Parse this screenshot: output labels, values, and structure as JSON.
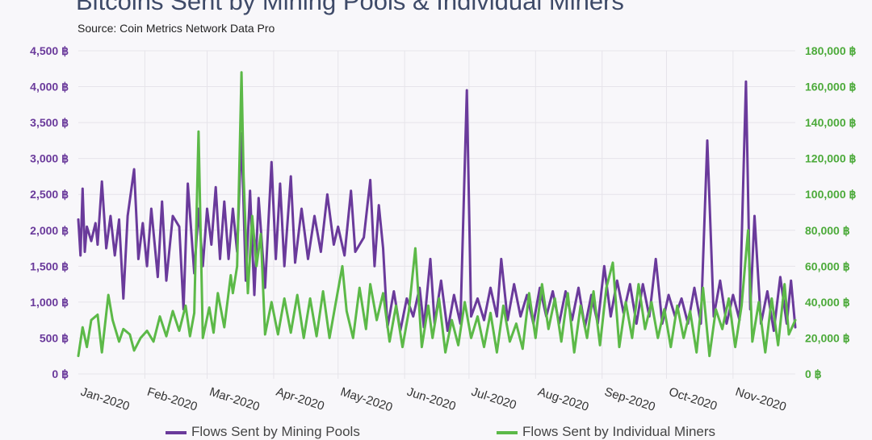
{
  "header": {
    "title": "Bitcoins Sent by Mining Pools & Individual Miners",
    "subtitle": "Source: Coin Metrics Network Data Pro"
  },
  "colors": {
    "pools": "#6a3a9b",
    "miners": "#5cb948",
    "grid": "#e6e4ea",
    "axis_left": "#6a3a9b",
    "axis_right": "#4caa3a"
  },
  "legend": {
    "pools": "Flows Sent by Mining Pools",
    "miners": "Flows Sent by Individual Miners"
  },
  "chart_data": {
    "type": "line",
    "title": "Bitcoins Sent by Mining Pools & Individual Miners",
    "x_type": "date",
    "x_range": [
      "2020-01-01",
      "2020-11-30"
    ],
    "x_ticks": [
      "Jan-2020",
      "Feb-2020",
      "Mar-2020",
      "Apr-2020",
      "May-2020",
      "Jun-2020",
      "Jul-2020",
      "Aug-2020",
      "Sep-2020",
      "Oct-2020",
      "Nov-2020"
    ],
    "y_left": {
      "range": [
        0,
        4500
      ],
      "ticks": [
        "0 ฿",
        "500 ฿",
        "1,000 ฿",
        "1,500 ฿",
        "2,000 ฿",
        "2,500 ฿",
        "3,000 ฿",
        "3,500 ฿",
        "4,000 ฿",
        "4,500 ฿"
      ]
    },
    "y_right": {
      "range": [
        0,
        180000
      ],
      "ticks": [
        "0 ฿",
        "20,000 ฿",
        "40,000 ฿",
        "60,000 ฿",
        "80,000 ฿",
        "100,000 ฿",
        "120,000 ฿",
        "140,000 ฿",
        "160,000 ฿",
        "180,000 ฿"
      ]
    },
    "grid": true,
    "legend_position": "bottom",
    "series": [
      {
        "name": "Flows Sent by Mining Pools",
        "axis": "left",
        "points": [
          [
            "2020-01-01",
            2150
          ],
          [
            "2020-01-02",
            1650
          ],
          [
            "2020-01-03",
            2580
          ],
          [
            "2020-01-04",
            1700
          ],
          [
            "2020-01-05",
            2050
          ],
          [
            "2020-01-07",
            1850
          ],
          [
            "2020-01-09",
            2100
          ],
          [
            "2020-01-10",
            1800
          ],
          [
            "2020-01-12",
            2680
          ],
          [
            "2020-01-14",
            1750
          ],
          [
            "2020-01-16",
            2200
          ],
          [
            "2020-01-18",
            1650
          ],
          [
            "2020-01-20",
            2150
          ],
          [
            "2020-01-22",
            1050
          ],
          [
            "2020-01-24",
            2200
          ],
          [
            "2020-01-27",
            2850
          ],
          [
            "2020-01-29",
            1600
          ],
          [
            "2020-01-31",
            2100
          ],
          [
            "2020-02-02",
            1500
          ],
          [
            "2020-02-04",
            2300
          ],
          [
            "2020-02-07",
            1350
          ],
          [
            "2020-02-09",
            2400
          ],
          [
            "2020-02-11",
            1300
          ],
          [
            "2020-02-14",
            2200
          ],
          [
            "2020-02-17",
            2050
          ],
          [
            "2020-02-19",
            900
          ],
          [
            "2020-02-21",
            2650
          ],
          [
            "2020-02-24",
            1400
          ],
          [
            "2020-02-26",
            2300
          ],
          [
            "2020-02-28",
            1500
          ],
          [
            "2020-03-01",
            2300
          ],
          [
            "2020-03-03",
            1800
          ],
          [
            "2020-03-05",
            2600
          ],
          [
            "2020-03-07",
            1600
          ],
          [
            "2020-03-09",
            2400
          ],
          [
            "2020-03-11",
            1600
          ],
          [
            "2020-03-13",
            2300
          ],
          [
            "2020-03-15",
            1700
          ],
          [
            "2020-03-17",
            3350
          ],
          [
            "2020-03-19",
            1300
          ],
          [
            "2020-03-21",
            2550
          ],
          [
            "2020-03-23",
            1100
          ],
          [
            "2020-03-25",
            2450
          ],
          [
            "2020-03-28",
            1200
          ],
          [
            "2020-03-31",
            2950
          ],
          [
            "2020-04-02",
            1600
          ],
          [
            "2020-04-04",
            2650
          ],
          [
            "2020-04-06",
            1500
          ],
          [
            "2020-04-09",
            2750
          ],
          [
            "2020-04-11",
            1550
          ],
          [
            "2020-04-14",
            2300
          ],
          [
            "2020-04-17",
            1600
          ],
          [
            "2020-04-20",
            2200
          ],
          [
            "2020-04-23",
            1700
          ],
          [
            "2020-04-26",
            2500
          ],
          [
            "2020-04-29",
            1800
          ],
          [
            "2020-05-01",
            2050
          ],
          [
            "2020-05-04",
            1650
          ],
          [
            "2020-05-07",
            2550
          ],
          [
            "2020-05-09",
            1700
          ],
          [
            "2020-05-11",
            1800
          ],
          [
            "2020-05-13",
            1900
          ],
          [
            "2020-05-16",
            2700
          ],
          [
            "2020-05-18",
            1500
          ],
          [
            "2020-05-20",
            2350
          ],
          [
            "2020-05-22",
            1750
          ],
          [
            "2020-05-24",
            650
          ],
          [
            "2020-05-27",
            1150
          ],
          [
            "2020-05-30",
            600
          ],
          [
            "2020-06-02",
            1050
          ],
          [
            "2020-06-05",
            800
          ],
          [
            "2020-06-08",
            1200
          ],
          [
            "2020-06-10",
            650
          ],
          [
            "2020-06-13",
            1600
          ],
          [
            "2020-06-15",
            700
          ],
          [
            "2020-06-18",
            1300
          ],
          [
            "2020-06-21",
            600
          ],
          [
            "2020-06-24",
            1100
          ],
          [
            "2020-06-27",
            700
          ],
          [
            "2020-06-30",
            3950
          ],
          [
            "2020-07-02",
            800
          ],
          [
            "2020-07-05",
            1050
          ],
          [
            "2020-07-08",
            750
          ],
          [
            "2020-07-11",
            1200
          ],
          [
            "2020-07-14",
            800
          ],
          [
            "2020-07-16",
            1600
          ],
          [
            "2020-07-19",
            750
          ],
          [
            "2020-07-22",
            1250
          ],
          [
            "2020-07-25",
            800
          ],
          [
            "2020-07-28",
            1100
          ],
          [
            "2020-07-31",
            700
          ],
          [
            "2020-08-03",
            1200
          ],
          [
            "2020-08-06",
            800
          ],
          [
            "2020-08-09",
            1150
          ],
          [
            "2020-08-12",
            700
          ],
          [
            "2020-08-15",
            1150
          ],
          [
            "2020-08-18",
            750
          ],
          [
            "2020-08-21",
            1200
          ],
          [
            "2020-08-24",
            650
          ],
          [
            "2020-08-27",
            1100
          ],
          [
            "2020-08-30",
            700
          ],
          [
            "2020-09-02",
            1500
          ],
          [
            "2020-09-05",
            800
          ],
          [
            "2020-09-08",
            1300
          ],
          [
            "2020-09-11",
            850
          ],
          [
            "2020-09-14",
            1250
          ],
          [
            "2020-09-17",
            700
          ],
          [
            "2020-09-20",
            1250
          ],
          [
            "2020-09-23",
            800
          ],
          [
            "2020-09-26",
            1600
          ],
          [
            "2020-09-29",
            700
          ],
          [
            "2020-10-02",
            1100
          ],
          [
            "2020-10-05",
            800
          ],
          [
            "2020-10-08",
            1050
          ],
          [
            "2020-10-11",
            700
          ],
          [
            "2020-10-14",
            1200
          ],
          [
            "2020-10-17",
            700
          ],
          [
            "2020-10-20",
            3250
          ],
          [
            "2020-10-23",
            800
          ],
          [
            "2020-10-26",
            1300
          ],
          [
            "2020-10-29",
            700
          ],
          [
            "2020-11-01",
            1100
          ],
          [
            "2020-11-04",
            750
          ],
          [
            "2020-11-07",
            4070
          ],
          [
            "2020-11-09",
            900
          ],
          [
            "2020-11-11",
            2200
          ],
          [
            "2020-11-14",
            700
          ],
          [
            "2020-11-17",
            1150
          ],
          [
            "2020-11-20",
            600
          ],
          [
            "2020-11-23",
            1350
          ],
          [
            "2020-11-26",
            700
          ],
          [
            "2020-11-28",
            1300
          ],
          [
            "2020-11-30",
            650
          ]
        ]
      },
      {
        "name": "Flows Sent by Individual Miners",
        "axis": "right",
        "points": [
          [
            "2020-01-01",
            10000
          ],
          [
            "2020-01-03",
            26000
          ],
          [
            "2020-01-05",
            15000
          ],
          [
            "2020-01-07",
            30000
          ],
          [
            "2020-01-10",
            33000
          ],
          [
            "2020-01-12",
            12000
          ],
          [
            "2020-01-15",
            44000
          ],
          [
            "2020-01-17",
            30000
          ],
          [
            "2020-01-20",
            18000
          ],
          [
            "2020-01-22",
            25000
          ],
          [
            "2020-01-25",
            22000
          ],
          [
            "2020-01-27",
            13000
          ],
          [
            "2020-01-30",
            20000
          ],
          [
            "2020-02-02",
            24000
          ],
          [
            "2020-02-05",
            18000
          ],
          [
            "2020-02-08",
            32000
          ],
          [
            "2020-02-11",
            21000
          ],
          [
            "2020-02-14",
            35000
          ],
          [
            "2020-02-17",
            24000
          ],
          [
            "2020-02-20",
            38000
          ],
          [
            "2020-02-22",
            21000
          ],
          [
            "2020-02-24",
            34000
          ],
          [
            "2020-02-26",
            135000
          ],
          [
            "2020-02-28",
            20000
          ],
          [
            "2020-03-02",
            37000
          ],
          [
            "2020-03-04",
            23000
          ],
          [
            "2020-03-06",
            45000
          ],
          [
            "2020-03-09",
            26000
          ],
          [
            "2020-03-12",
            55000
          ],
          [
            "2020-03-13",
            45000
          ],
          [
            "2020-03-15",
            60000
          ],
          [
            "2020-03-17",
            168000
          ],
          [
            "2020-03-18",
            110000
          ],
          [
            "2020-03-20",
            45000
          ],
          [
            "2020-03-22",
            88000
          ],
          [
            "2020-03-24",
            60000
          ],
          [
            "2020-03-26",
            78000
          ],
          [
            "2020-03-28",
            22000
          ],
          [
            "2020-03-31",
            40000
          ],
          [
            "2020-04-03",
            22000
          ],
          [
            "2020-04-06",
            42000
          ],
          [
            "2020-04-09",
            23000
          ],
          [
            "2020-04-12",
            44000
          ],
          [
            "2020-04-15",
            20000
          ],
          [
            "2020-04-18",
            42000
          ],
          [
            "2020-04-21",
            21000
          ],
          [
            "2020-04-24",
            46000
          ],
          [
            "2020-04-27",
            20000
          ],
          [
            "2020-04-30",
            40000
          ],
          [
            "2020-05-03",
            60000
          ],
          [
            "2020-05-05",
            35000
          ],
          [
            "2020-05-08",
            20000
          ],
          [
            "2020-05-11",
            48000
          ],
          [
            "2020-05-14",
            25000
          ],
          [
            "2020-05-16",
            50000
          ],
          [
            "2020-05-19",
            30000
          ],
          [
            "2020-05-22",
            45000
          ],
          [
            "2020-05-25",
            18000
          ],
          [
            "2020-05-28",
            38000
          ],
          [
            "2020-05-31",
            15000
          ],
          [
            "2020-06-03",
            35000
          ],
          [
            "2020-06-06",
            70000
          ],
          [
            "2020-06-09",
            15000
          ],
          [
            "2020-06-12",
            38000
          ],
          [
            "2020-06-14",
            20000
          ],
          [
            "2020-06-17",
            42000
          ],
          [
            "2020-06-20",
            12000
          ],
          [
            "2020-06-23",
            30000
          ],
          [
            "2020-06-26",
            16000
          ],
          [
            "2020-06-29",
            40000
          ],
          [
            "2020-07-02",
            20000
          ],
          [
            "2020-07-05",
            32000
          ],
          [
            "2020-07-08",
            15000
          ],
          [
            "2020-07-11",
            34000
          ],
          [
            "2020-07-14",
            12000
          ],
          [
            "2020-07-17",
            38000
          ],
          [
            "2020-07-20",
            18000
          ],
          [
            "2020-07-23",
            28000
          ],
          [
            "2020-07-26",
            14000
          ],
          [
            "2020-07-29",
            45000
          ],
          [
            "2020-08-01",
            20000
          ],
          [
            "2020-08-04",
            50000
          ],
          [
            "2020-08-07",
            25000
          ],
          [
            "2020-08-10",
            42000
          ],
          [
            "2020-08-13",
            18000
          ],
          [
            "2020-08-16",
            45000
          ],
          [
            "2020-08-19",
            12000
          ],
          [
            "2020-08-22",
            38000
          ],
          [
            "2020-08-25",
            20000
          ],
          [
            "2020-08-28",
            46000
          ],
          [
            "2020-08-31",
            16000
          ],
          [
            "2020-09-03",
            48000
          ],
          [
            "2020-09-06",
            62000
          ],
          [
            "2020-09-09",
            15000
          ],
          [
            "2020-09-12",
            40000
          ],
          [
            "2020-09-15",
            20000
          ],
          [
            "2020-09-18",
            50000
          ],
          [
            "2020-09-21",
            25000
          ],
          [
            "2020-09-24",
            40000
          ],
          [
            "2020-09-27",
            20000
          ],
          [
            "2020-09-30",
            36000
          ],
          [
            "2020-10-03",
            15000
          ],
          [
            "2020-10-06",
            38000
          ],
          [
            "2020-10-09",
            20000
          ],
          [
            "2020-10-12",
            35000
          ],
          [
            "2020-10-15",
            12000
          ],
          [
            "2020-10-18",
            48000
          ],
          [
            "2020-10-21",
            10000
          ],
          [
            "2020-10-24",
            36000
          ],
          [
            "2020-10-27",
            25000
          ],
          [
            "2020-10-30",
            42000
          ],
          [
            "2020-11-02",
            15000
          ],
          [
            "2020-11-05",
            38000
          ],
          [
            "2020-11-08",
            80000
          ],
          [
            "2020-11-10",
            18000
          ],
          [
            "2020-11-13",
            40000
          ],
          [
            "2020-11-16",
            12000
          ],
          [
            "2020-11-19",
            42000
          ],
          [
            "2020-11-22",
            16000
          ],
          [
            "2020-11-25",
            50000
          ],
          [
            "2020-11-27",
            22000
          ],
          [
            "2020-11-30",
            30000
          ]
        ]
      }
    ]
  }
}
